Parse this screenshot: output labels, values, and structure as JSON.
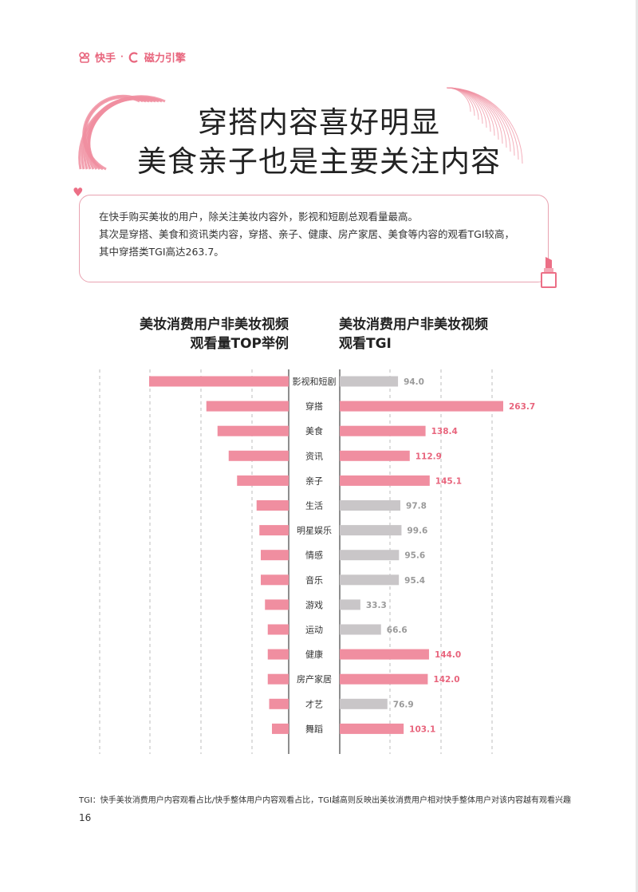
{
  "brand": {
    "logo1": "快手",
    "separator": "·",
    "logo2": "磁力引擎"
  },
  "title": {
    "line1": "穿搭内容喜好明显",
    "line2": "美食亲子也是主要关注内容"
  },
  "intro": {
    "line1": "在快手购买美妆的用户，除关注美妆内容外，影视和短剧总观看量最高。",
    "line2": "其次是穿搭、美食和资讯类内容，穿搭、亲子、健康、房产家居、美食等内容的观看TGI较高，",
    "line3": "其中穿搭类TGI高达263.7。"
  },
  "colors": {
    "pink": "#f08ea0",
    "gray": "#c9c6c8",
    "accent": "#e8657d",
    "grid": "#bdbdbd",
    "axis": "#444444"
  },
  "chart_data": {
    "type": "bar",
    "left_panel_title": [
      "美妆消费用户非美妆视频",
      "观看量TOP举例"
    ],
    "right_panel_title": [
      "美妆消费用户非美妆视频",
      "观看TGI"
    ],
    "categories": [
      "影视和短剧",
      "穿搭",
      "美食",
      "资讯",
      "亲子",
      "生活",
      "明星娱乐",
      "情感",
      "音乐",
      "游戏",
      "运动",
      "健康",
      "房产家居",
      "才艺",
      "舞蹈"
    ],
    "series": [
      {
        "values": [
          100,
          59,
          51,
          43,
          37,
          23,
          21,
          20,
          20,
          17,
          15,
          15,
          15,
          14,
          12
        ],
        "note": "relative scale, no values printed"
      },
      {
        "values": [
          94.0,
          263.7,
          138.4,
          112.9,
          145.1,
          97.8,
          99.6,
          95.6,
          95.4,
          33.3,
          66.6,
          144.0,
          142.0,
          76.9,
          103.1
        ],
        "labels": [
          "94.0",
          "263.7",
          "138.4",
          "112.9",
          "145.1",
          "97.8",
          "99.6",
          "95.6",
          "95.4",
          "33.3",
          "66.6",
          "144.0",
          "142.0",
          "76.9",
          "103.1"
        ],
        "highlight": [
          false,
          true,
          true,
          true,
          true,
          false,
          false,
          false,
          false,
          false,
          false,
          true,
          true,
          false,
          true
        ]
      }
    ],
    "grid": true
  },
  "footnote": "TGI：快手美妆消费用户内容观看占比/快手整体用户内容观看占比，TGI越高则反映出美妆消费用户相对快手整体用户对该内容越有观看兴趣",
  "page_number": "16"
}
